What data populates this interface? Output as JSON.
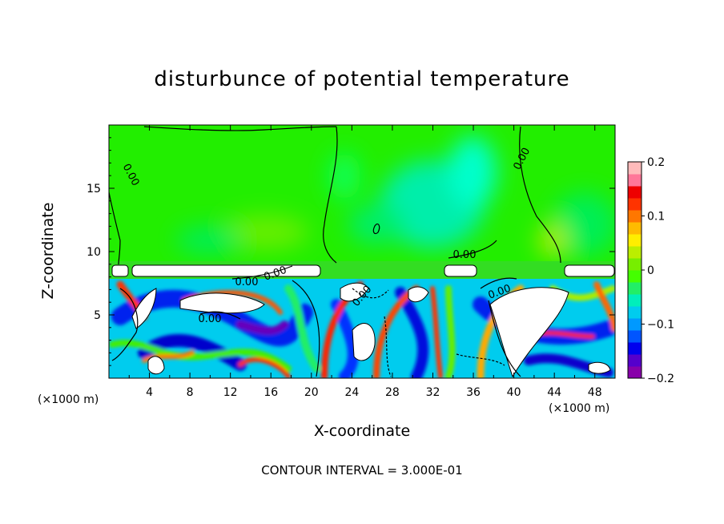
{
  "chart_data": {
    "type": "heatmap",
    "title": "disturbunce of potential temperature",
    "xlabel": "X-coordinate",
    "ylabel": "Z-coordinate",
    "x_unit": "(×1000 m)",
    "z_unit": "(×1000 m)",
    "xlim": [
      0,
      50
    ],
    "ylim": [
      0,
      20
    ],
    "x_ticks": [
      4,
      8,
      12,
      16,
      20,
      24,
      28,
      32,
      36,
      40,
      44,
      48
    ],
    "y_ticks": [
      5,
      10,
      15
    ],
    "colorbar": {
      "range": [
        -0.2,
        0.2
      ],
      "tick_values": [
        0.2,
        0.1,
        0,
        -0.1,
        -0.2
      ],
      "tick_labels": [
        "0.2",
        "0.1",
        "0",
        "−0.1",
        "−0.2"
      ],
      "colors": [
        "#8800aa",
        "#5500cc",
        "#0000ee",
        "#0055ff",
        "#0099ff",
        "#00ccee",
        "#00eebb",
        "#22ee66",
        "#44ff00",
        "#77ee00",
        "#bbee00",
        "#ffee00",
        "#ffbb00",
        "#ff7700",
        "#ff3300",
        "#ee0000",
        "#ff7799",
        "#ffbbbb"
      ]
    },
    "contour_labels": [
      "0.00",
      "0.00",
      "0.00",
      "0.00",
      "0.00",
      "0.00",
      "0.00",
      "0.00"
    ],
    "contour_interval_text": "CONTOUR INTERVAL = 3.000E-01"
  }
}
